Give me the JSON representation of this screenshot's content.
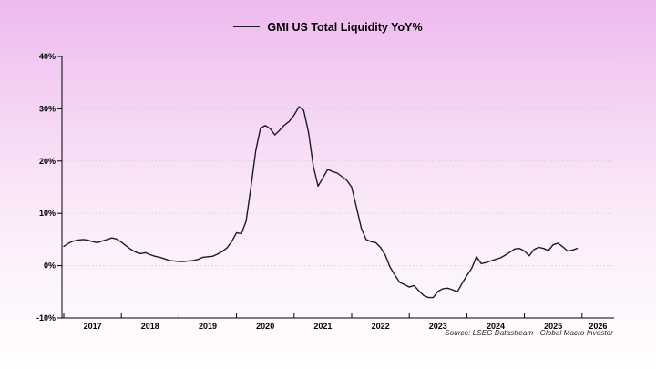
{
  "legend": {
    "label": "GMI US Total Liquidity YoY%"
  },
  "source": "Source: LSEG Datastream - Global Macro Investor",
  "colors": {
    "line": "#1c1c24",
    "axis": "#000000",
    "grid": "#ddcbdd",
    "text": "#000000",
    "bg_top": "#edb9ee",
    "bg_bottom": "#fefdfe"
  },
  "chart_data": {
    "type": "line",
    "title": "GMI US Total Liquidity YoY%",
    "series_name": "GMI US Total Liquidity YoY%",
    "x_start": {
      "year": 2017,
      "month": 1
    },
    "x_frequency": "monthly",
    "monthly_values_yoy_pct": [
      3.7,
      4.3,
      4.7,
      4.9,
      5.0,
      4.9,
      4.6,
      4.4,
      4.7,
      5.0,
      5.3,
      5.1,
      4.5,
      3.8,
      3.1,
      2.6,
      2.3,
      2.5,
      2.1,
      1.8,
      1.6,
      1.3,
      1.0,
      0.9,
      0.8,
      0.8,
      0.9,
      1.0,
      1.2,
      1.6,
      1.7,
      1.8,
      2.2,
      2.7,
      3.4,
      4.6,
      6.3,
      6.1,
      8.5,
      15.0,
      22.0,
      26.3,
      26.8,
      26.2,
      25.0,
      25.9,
      26.9,
      27.6,
      28.8,
      30.4,
      29.7,
      25.5,
      19.0,
      15.2,
      16.8,
      18.4,
      18.0,
      17.7,
      17.0,
      16.3,
      15.0,
      11.1,
      7.2,
      5.0,
      4.6,
      4.4,
      3.5,
      2.0,
      -0.3,
      -1.8,
      -3.2,
      -3.6,
      -4.1,
      -3.8,
      -4.8,
      -5.7,
      -6.1,
      -6.1,
      -4.9,
      -4.4,
      -4.3,
      -4.6,
      -5.0,
      -3.4,
      -1.9,
      -0.5,
      1.7,
      0.4,
      0.6,
      0.9,
      1.2,
      1.5,
      2.0,
      2.6,
      3.2,
      3.3,
      2.8,
      1.9,
      3.1,
      3.5,
      3.3,
      2.9,
      4.0,
      4.3,
      3.6,
      2.8,
      3.0,
      3.3
    ],
    "x_tick_years": [
      2017,
      2018,
      2019,
      2020,
      2021,
      2022,
      2023,
      2024,
      2025,
      2026
    ],
    "y_ticks": [
      {
        "value": 40,
        "label": "40%"
      },
      {
        "value": 30,
        "label": "30%"
      },
      {
        "value": 20,
        "label": "20%"
      },
      {
        "value": 10,
        "label": "10%"
      },
      {
        "value": 0,
        "label": "0%"
      },
      {
        "value": -10,
        "label": "-10%"
      }
    ],
    "ylim": [
      -10,
      40
    ],
    "grid": "dotted-horizontal",
    "legend_position": "top-center"
  }
}
